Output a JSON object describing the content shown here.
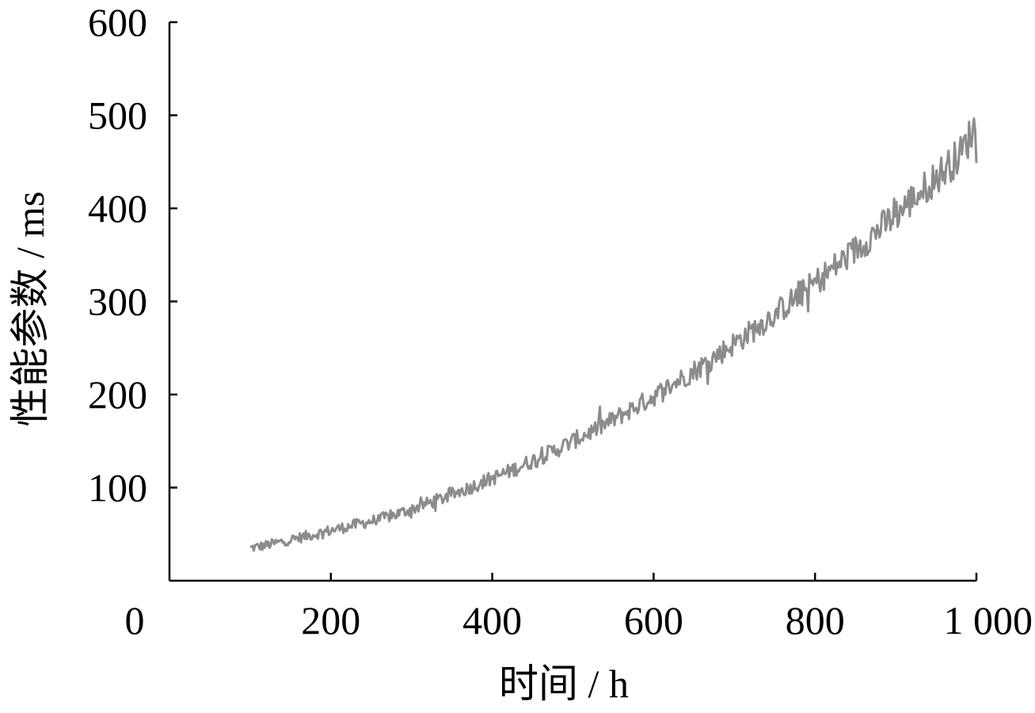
{
  "chart_data": {
    "type": "line",
    "title": "",
    "xlabel": "时间 / h",
    "ylabel": "性能参数 / ms",
    "xlim": [
      0,
      1000
    ],
    "ylim": [
      0,
      600
    ],
    "x_ticks": [
      0,
      200,
      400,
      600,
      800,
      1000
    ],
    "x_tick_labels": [
      "0",
      "200",
      "400",
      "600",
      "800",
      "1 000"
    ],
    "y_ticks": [
      100,
      200,
      300,
      400,
      500,
      600
    ],
    "y_tick_labels": [
      "100",
      "200",
      "300",
      "400",
      "500",
      "600"
    ],
    "grid": false,
    "legend": "none",
    "line_color": "#8c8c8c",
    "series": [
      {
        "x": [
          100,
          120,
          140,
          160,
          180,
          200,
          220,
          240,
          260,
          280,
          300,
          320,
          340,
          360,
          380,
          400,
          420,
          440,
          460,
          480,
          500,
          520,
          540,
          560,
          580,
          600,
          620,
          640,
          660,
          680,
          700,
          720,
          740,
          760,
          780,
          800,
          820,
          840,
          860,
          880,
          900,
          920,
          940,
          960,
          980,
          1000
        ],
        "y": [
          35,
          38,
          42,
          46,
          50,
          54,
          58,
          62,
          66,
          71,
          77,
          83,
          89,
          96,
          103,
          110,
          117,
          125,
          133,
          141,
          150,
          159,
          168,
          178,
          188,
          198,
          209,
          220,
          231,
          243,
          255,
          267,
          280,
          293,
          306,
          320,
          334,
          348,
          363,
          378,
          393,
          409,
          425,
          441,
          458,
          490
        ]
      }
    ]
  }
}
